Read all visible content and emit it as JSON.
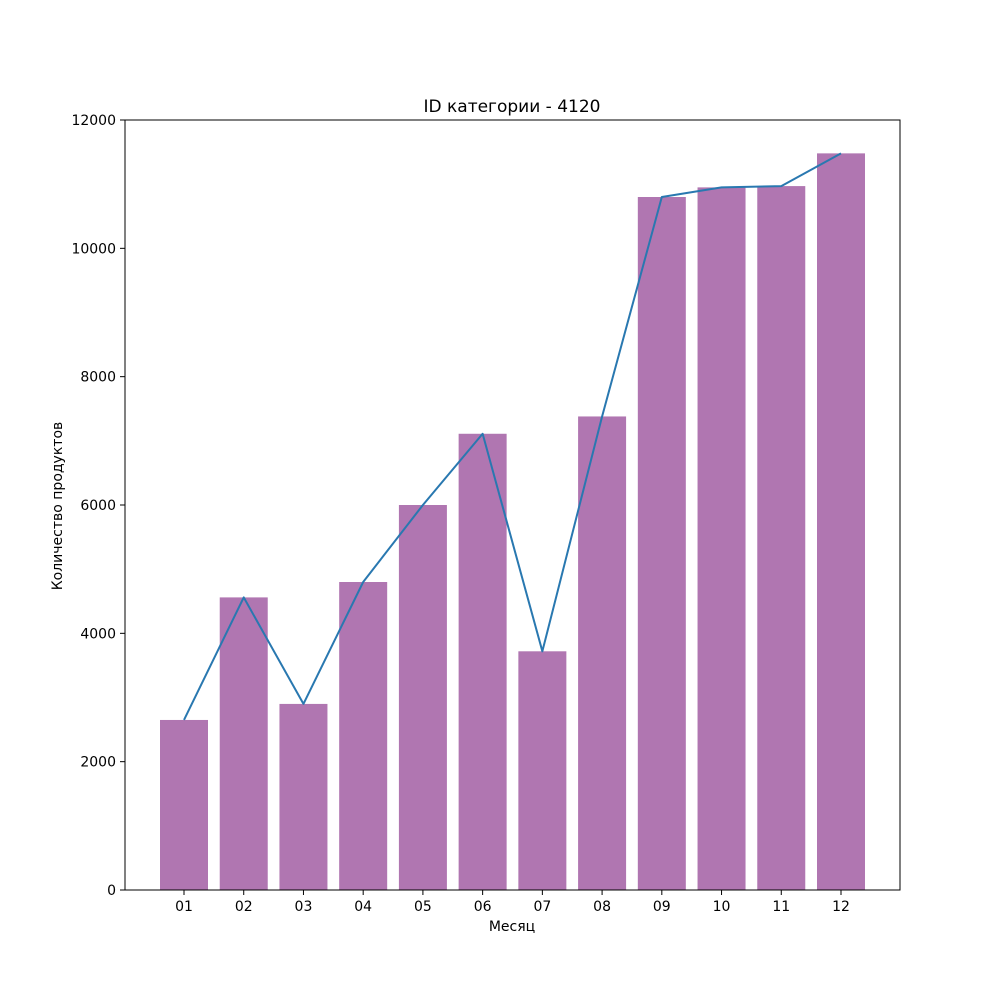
{
  "chart_data": {
    "type": "bar",
    "title": "ID категории - 4120",
    "xlabel": "Месяц",
    "ylabel": "Количество продуктов",
    "categories": [
      "01",
      "02",
      "03",
      "04",
      "05",
      "06",
      "07",
      "08",
      "09",
      "10",
      "11",
      "12"
    ],
    "series": [
      {
        "type": "bar",
        "values": [
          2650,
          4560,
          2900,
          4800,
          6000,
          7110,
          3720,
          7380,
          10800,
          10950,
          10970,
          11480
        ],
        "color": "#b076b1"
      },
      {
        "type": "line",
        "values": [
          2650,
          4560,
          2900,
          4800,
          6000,
          7110,
          3720,
          7380,
          10800,
          10950,
          10970,
          11480
        ],
        "color": "#2978b0"
      }
    ],
    "ylim": [
      0,
      12000
    ],
    "yticks": [
      "0",
      "2000",
      "4000",
      "6000",
      "8000",
      "10000",
      "12000"
    ],
    "grid": false,
    "legend": "none"
  }
}
